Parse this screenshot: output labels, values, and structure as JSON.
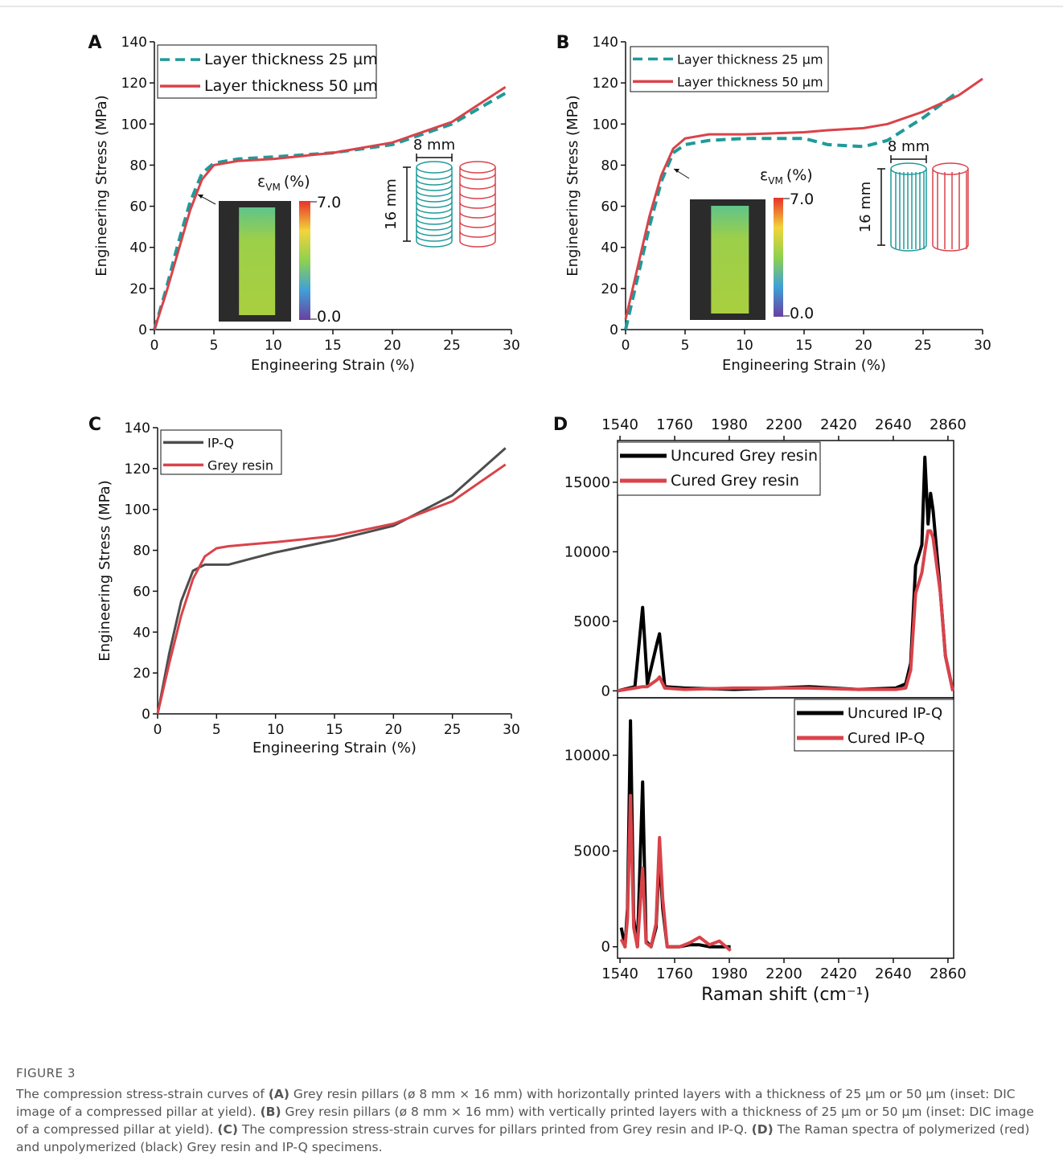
{
  "chart_data": [
    {
      "type": "line",
      "panel": "A",
      "xlabel": "Engineering Strain (%)",
      "ylabel": "Engineering Stress (MPa)",
      "x": [
        0,
        1,
        2,
        3,
        4,
        5,
        7,
        10,
        15,
        20,
        25,
        29.5
      ],
      "series": [
        {
          "name": "Layer thickness 25 µm",
          "color": "#1f9a9a",
          "dash": true,
          "values": [
            0,
            20,
            42,
            62,
            76,
            81,
            83,
            84,
            86,
            90,
            100,
            115
          ]
        },
        {
          "name": "Layer thickness 50 µm",
          "color": "#d9434a",
          "dash": false,
          "values": [
            0,
            18,
            38,
            58,
            73,
            80,
            82,
            83,
            86,
            91,
            101,
            118
          ]
        }
      ],
      "xlim": [
        0,
        30
      ],
      "xticks": [
        0,
        5,
        10,
        15,
        20,
        25,
        30
      ],
      "ylim": [
        0,
        140
      ],
      "yticks": [
        0,
        20,
        40,
        60,
        80,
        100,
        120,
        140
      ],
      "legend": "upper left",
      "inset": {
        "symbol": "ε",
        "subscript": "VM",
        "unit": "(%)",
        "max_label": "7.0",
        "min_label": "0.0",
        "width_label": "8 mm",
        "height_label": "16 mm",
        "layers": "horizontal"
      }
    },
    {
      "type": "line",
      "panel": "B",
      "xlabel": "Engineering Strain (%)",
      "ylabel": "Engineering Stress (MPa)",
      "x": [
        0,
        1,
        2,
        3,
        4,
        5,
        7,
        10,
        15,
        17,
        20,
        22,
        25,
        28,
        30
      ],
      "series": [
        {
          "name": "Layer thickness 25 µm",
          "color": "#1f9a9a",
          "dash": true,
          "values": [
            0,
            25,
            50,
            72,
            86,
            90,
            92,
            93,
            93,
            90,
            89,
            92,
            103,
            116,
            null
          ]
        },
        {
          "name": "Layer thickness 50 µm",
          "color": "#d9434a",
          "dash": false,
          "values": [
            5,
            30,
            55,
            75,
            88,
            93,
            95,
            95,
            96,
            97,
            98,
            100,
            106,
            114,
            122
          ]
        }
      ],
      "xlim": [
        0,
        30
      ],
      "xticks": [
        0,
        5,
        10,
        15,
        20,
        25,
        30
      ],
      "ylim": [
        0,
        140
      ],
      "yticks": [
        0,
        20,
        40,
        60,
        80,
        100,
        120,
        140
      ],
      "legend": "upper left",
      "inset": {
        "symbol": "ε",
        "subscript": "VM",
        "unit": "(%)",
        "max_label": "7.0",
        "min_label": "0.0",
        "width_label": "8 mm",
        "height_label": "16 mm",
        "layers": "vertical"
      }
    },
    {
      "type": "line",
      "panel": "C",
      "xlabel": "Engineering Strain (%)",
      "ylabel": "Engineering Stress (MPa)",
      "x": [
        0,
        1,
        2,
        3,
        4,
        5,
        6,
        8,
        10,
        15,
        20,
        25,
        29.5
      ],
      "series": [
        {
          "name": "IP-Q",
          "color": "#4d4d4d",
          "dash": false,
          "values": [
            0,
            30,
            55,
            70,
            73,
            73,
            73,
            76,
            79,
            85,
            92,
            107,
            130
          ]
        },
        {
          "name": "Grey resin",
          "color": "#d9434a",
          "dash": false,
          "values": [
            0,
            25,
            48,
            66,
            77,
            81,
            82,
            83,
            84,
            87,
            93,
            104,
            122
          ]
        }
      ],
      "xlim": [
        0,
        30
      ],
      "xticks": [
        0,
        5,
        10,
        15,
        20,
        25,
        30
      ],
      "ylim": [
        0,
        140
      ],
      "yticks": [
        0,
        20,
        40,
        60,
        80,
        100,
        120,
        140
      ],
      "legend": "upper left"
    },
    {
      "type": "line",
      "panel": "D",
      "xtick_position": "top",
      "x": [
        1530,
        1600,
        1631,
        1650,
        1690,
        1699,
        1720,
        1800,
        2000,
        2300,
        2500,
        2650,
        2690,
        2710,
        2730,
        2755,
        2767,
        2780,
        2790,
        2800,
        2830,
        2850,
        2880
      ],
      "series": [
        {
          "name": "Uncured Grey resin",
          "color": "#000000",
          "dash": false,
          "values": [
            0,
            300,
            6000,
            500,
            3500,
            4100,
            300,
            200,
            100,
            300,
            100,
            200,
            500,
            2000,
            9000,
            10500,
            16800,
            12000,
            14200,
            13000,
            7000,
            2500,
            0
          ]
        },
        {
          "name": "Cured Grey resin",
          "color": "#d9434a",
          "dash": false,
          "values": [
            0,
            200,
            300,
            300,
            800,
            1000,
            200,
            100,
            200,
            200,
            100,
            100,
            200,
            1500,
            7000,
            8500,
            10000,
            11500,
            11500,
            11000,
            7000,
            2500,
            0
          ]
        }
      ],
      "xlim": [
        1530,
        2883
      ],
      "xticks": [
        1540,
        1760,
        1980,
        2200,
        2420,
        2640,
        2860
      ],
      "ylim": [
        -500,
        18000
      ],
      "yticks": [
        0,
        5000,
        10000,
        15000
      ],
      "legend": "upper left"
    },
    {
      "type": "line",
      "xlabel": "Raman shift (cm⁻¹)",
      "xtick_position": "bottom",
      "x": [
        1545,
        1560,
        1570,
        1582,
        1595,
        1610,
        1631,
        1645,
        1665,
        1685,
        1699,
        1712,
        1730,
        1780,
        1820,
        1860,
        1900,
        1940,
        1985
      ],
      "series": [
        {
          "name": "Uncured IP-Q",
          "color": "#000000",
          "dash": false,
          "values": [
            1000,
            0,
            2000,
            11800,
            1500,
            0,
            8600,
            300,
            0,
            1000,
            4800,
            2000,
            0,
            0,
            100,
            100,
            0,
            0,
            0
          ]
        },
        {
          "name": "Cured IP-Q",
          "color": "#d9434a",
          "dash": false,
          "values": [
            400,
            0,
            1500,
            7900,
            1000,
            0,
            4100,
            200,
            0,
            1200,
            5700,
            2500,
            0,
            0,
            200,
            500,
            100,
            300,
            -200
          ]
        }
      ],
      "xlim": [
        1530,
        2883
      ],
      "xticks": [
        1540,
        1760,
        1980,
        2200,
        2420,
        2640,
        2860
      ],
      "ylim": [
        -600,
        13000
      ],
      "yticks": [
        0,
        5000,
        10000
      ],
      "legend": "upper right"
    }
  ],
  "caption": {
    "label": "FIGURE 3",
    "segments": [
      {
        "text": "The compression stress-strain curves of ",
        "bold": false
      },
      {
        "text": "(A)",
        "bold": true
      },
      {
        "text": " Grey resin pillars (ø 8 mm × 16 mm) with horizontally printed layers with a thickness of 25 µm or 50 µm (inset: DIC image of a compressed pillar at yield). ",
        "bold": false
      },
      {
        "text": "(B)",
        "bold": true
      },
      {
        "text": " Grey resin pillars (ø 8 mm × 16 mm) with vertically printed layers with a thickness of 25 µm or 50 µm (inset: DIC image of a compressed pillar at yield). ",
        "bold": false
      },
      {
        "text": "(C)",
        "bold": true
      },
      {
        "text": " The compression stress-strain curves for pillars printed from Grey resin and IP-Q. ",
        "bold": false
      },
      {
        "text": "(D)",
        "bold": true
      },
      {
        "text": " The Raman spectra of polymerized (red) and unpolymerized (black) Grey resin and IP-Q specimens.",
        "bold": false
      }
    ]
  }
}
